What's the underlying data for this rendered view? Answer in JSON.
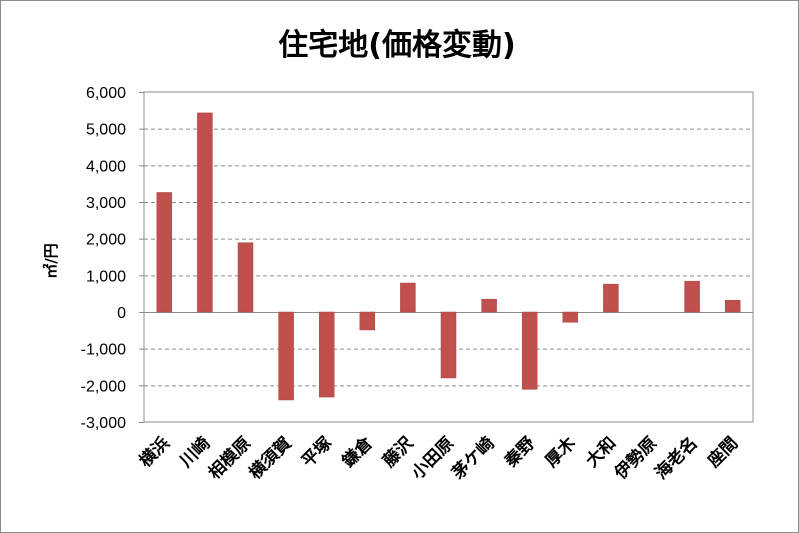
{
  "chart_data": {
    "type": "bar",
    "title": "住宅地(価格変動)",
    "xlabel": "",
    "ylabel": "㎡/円",
    "categories": [
      "横浜",
      "川崎",
      "相模原",
      "横須賀",
      "平塚",
      "鎌倉",
      "藤沢",
      "小田原",
      "茅ケ崎",
      "秦野",
      "厚木",
      "大和",
      "伊勢原",
      "海老名",
      "座間"
    ],
    "series": [
      {
        "values": [
          3260,
          5430,
          1890,
          -2400,
          -2320,
          -490,
          790,
          -1800,
          350,
          -2110,
          -280,
          760,
          0,
          840,
          320
        ]
      }
    ],
    "ylim": [
      -3000,
      6000
    ],
    "yticks": [
      6000,
      5000,
      4000,
      3000,
      2000,
      1000,
      0,
      -1000,
      -2000,
      -3000
    ],
    "ytick_labels": [
      "6,000",
      "5,000",
      "4,000",
      "3,000",
      "2,000",
      "1,000",
      "0",
      "-1,000",
      "-2,000",
      "-3,000"
    ],
    "grid": "major y, dashed",
    "legend": "none",
    "colors": {
      "bar": "#c0504d",
      "bar_edge": "#b04542",
      "grid": "#8c8c8c",
      "axis": "#8c8c8c",
      "frame": "#8c8c8c"
    }
  }
}
